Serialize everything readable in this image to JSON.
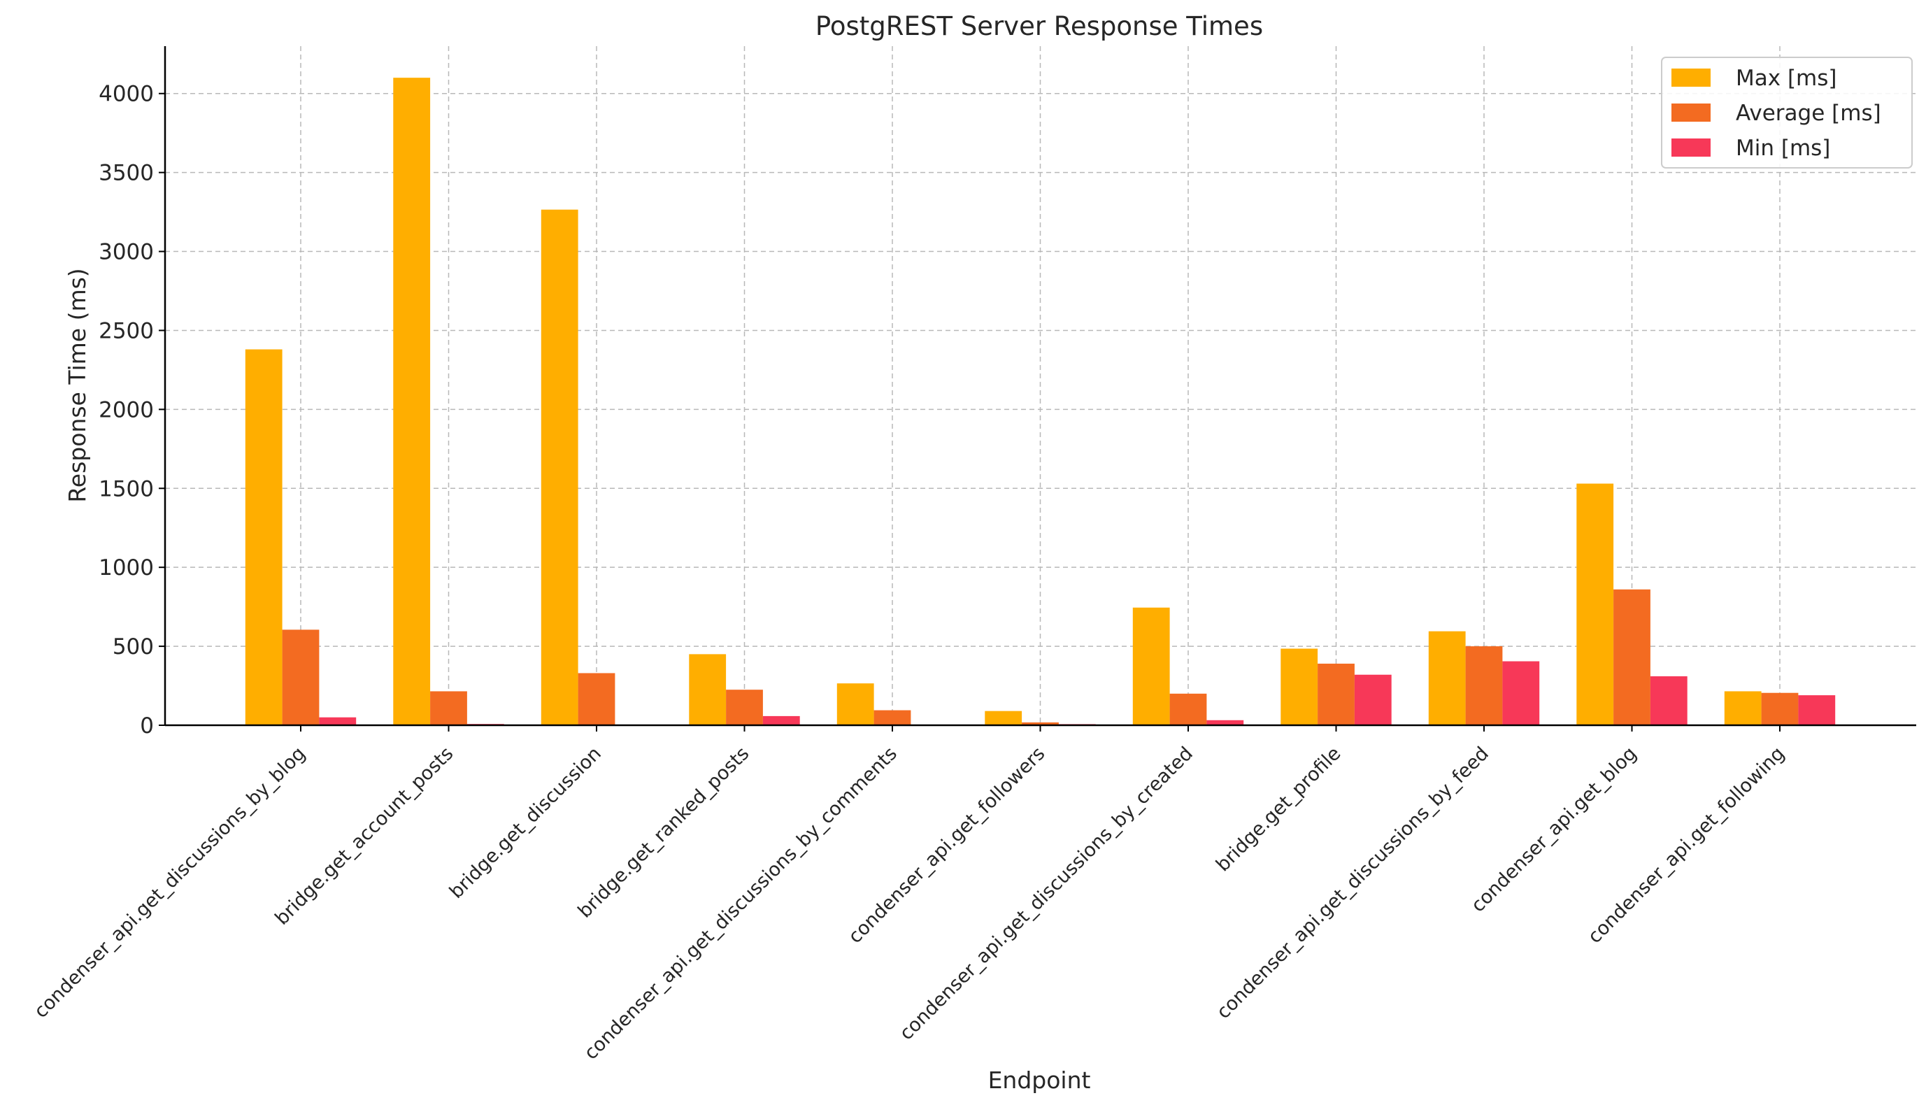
{
  "chart_data": {
    "type": "bar",
    "title": "PostgREST Server Response Times",
    "xlabel": "Endpoint",
    "ylabel": "Response Time (ms)",
    "ylim": [
      0,
      4300
    ],
    "yticks": [
      0,
      500,
      1000,
      1500,
      2000,
      2500,
      3000,
      3500,
      4000
    ],
    "grid": true,
    "legend_position": "top-right",
    "categories": [
      "condenser_api.get_discussions_by_blog",
      "bridge.get_account_posts",
      "bridge.get_discussion",
      "bridge.get_ranked_posts",
      "condenser_api.get_discussions_by_comments",
      "condenser_api.get_followers",
      "condenser_api.get_discussions_by_created",
      "bridge.get_profile",
      "condenser_api.get_discussions_by_feed",
      "condenser_api.get_blog",
      "condenser_api.get_following"
    ],
    "series": [
      {
        "name": "Max [ms]",
        "color": "#FFAE00",
        "values": [
          2380,
          4100,
          3265,
          450,
          265,
          90,
          745,
          485,
          595,
          1530,
          215
        ]
      },
      {
        "name": "Average [ms]",
        "color": "#F36B21",
        "values": [
          605,
          215,
          330,
          225,
          95,
          18,
          200,
          390,
          500,
          860,
          205
        ]
      },
      {
        "name": "Min [ms]",
        "color": "#F73858",
        "values": [
          50,
          8,
          2,
          58,
          3,
          7,
          32,
          320,
          405,
          310,
          190
        ]
      }
    ]
  }
}
